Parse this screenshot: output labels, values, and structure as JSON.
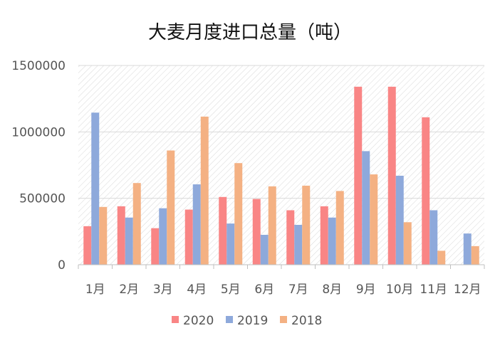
{
  "chart_data": {
    "type": "bar",
    "title": "大麦月度进口总量（吨）",
    "xlabel": "",
    "ylabel": "",
    "ylim": [
      0,
      1500000
    ],
    "yticks": [
      "0",
      "500000",
      "1000000",
      "1500000"
    ],
    "categories": [
      "1月",
      "2月",
      "3月",
      "4月",
      "5月",
      "6月",
      "7月",
      "8月",
      "9月",
      "10月",
      "11月",
      "12月"
    ],
    "series": [
      {
        "name": "2020",
        "color": "#f98585",
        "values": [
          290000,
          440000,
          275000,
          415000,
          510000,
          495000,
          410000,
          440000,
          1340000,
          1340000,
          1110000,
          null
        ]
      },
      {
        "name": "2019",
        "color": "#8ea9db",
        "values": [
          1145000,
          355000,
          425000,
          605000,
          310000,
          225000,
          300000,
          355000,
          855000,
          670000,
          410000,
          235000
        ]
      },
      {
        "name": "2018",
        "color": "#f4b183",
        "values": [
          435000,
          615000,
          860000,
          1115000,
          765000,
          590000,
          595000,
          555000,
          680000,
          320000,
          105000,
          140000
        ]
      }
    ],
    "grid": true,
    "legend": "bottom"
  }
}
